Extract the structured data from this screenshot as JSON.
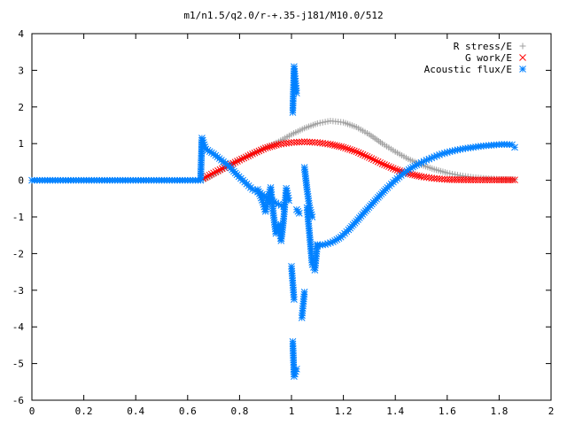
{
  "chart_data": {
    "type": "scatter",
    "title": "m1/n1.5/q2.0/r-+.35-j181/M10.0/512",
    "xlabel": "",
    "ylabel": "",
    "xlim": [
      0,
      2
    ],
    "ylim": [
      -6,
      4
    ],
    "xticks": [
      "0",
      "0.2",
      "0.4",
      "0.6",
      "0.8",
      "1",
      "1.2",
      "1.4",
      "1.6",
      "1.8",
      "2"
    ],
    "yticks": [
      "4",
      "3",
      "2",
      "1",
      "0",
      "-1",
      "-2",
      "-3",
      "-4",
      "-5",
      "-6"
    ],
    "grid": false,
    "legend_position": "top-right",
    "series": [
      {
        "name": "R stress/E",
        "marker": "plus",
        "color": "#a0a0a0",
        "points": [
          [
            0.66,
            0.0
          ],
          [
            0.7,
            0.15
          ],
          [
            0.75,
            0.35
          ],
          [
            0.8,
            0.55
          ],
          [
            0.85,
            0.72
          ],
          [
            0.9,
            0.88
          ],
          [
            0.95,
            1.05
          ],
          [
            1.0,
            1.25
          ],
          [
            1.05,
            1.42
          ],
          [
            1.1,
            1.55
          ],
          [
            1.15,
            1.62
          ],
          [
            1.2,
            1.58
          ],
          [
            1.25,
            1.45
          ],
          [
            1.3,
            1.25
          ],
          [
            1.35,
            1.0
          ],
          [
            1.4,
            0.78
          ],
          [
            1.45,
            0.58
          ],
          [
            1.5,
            0.42
          ],
          [
            1.55,
            0.3
          ],
          [
            1.6,
            0.2
          ],
          [
            1.65,
            0.13
          ],
          [
            1.7,
            0.08
          ],
          [
            1.75,
            0.05
          ],
          [
            1.8,
            0.03
          ],
          [
            1.86,
            0.02
          ]
        ]
      },
      {
        "name": "G work/E",
        "marker": "cross",
        "color": "#ff0000",
        "points": [
          [
            0.66,
            0.05
          ],
          [
            0.7,
            0.2
          ],
          [
            0.75,
            0.38
          ],
          [
            0.8,
            0.55
          ],
          [
            0.85,
            0.72
          ],
          [
            0.9,
            0.88
          ],
          [
            0.95,
            0.98
          ],
          [
            1.0,
            1.03
          ],
          [
            1.05,
            1.05
          ],
          [
            1.1,
            1.03
          ],
          [
            1.15,
            0.98
          ],
          [
            1.2,
            0.9
          ],
          [
            1.25,
            0.78
          ],
          [
            1.3,
            0.62
          ],
          [
            1.35,
            0.45
          ],
          [
            1.4,
            0.3
          ],
          [
            1.45,
            0.18
          ],
          [
            1.5,
            0.1
          ],
          [
            1.55,
            0.05
          ],
          [
            1.6,
            0.02
          ],
          [
            1.7,
            0.01
          ],
          [
            1.8,
            0.01
          ],
          [
            1.86,
            0.01
          ]
        ]
      },
      {
        "name": "Acoustic flux/E",
        "marker": "star",
        "color": "#0080ff",
        "points": [
          [
            0.0,
            0.0
          ],
          [
            0.05,
            0.0
          ],
          [
            0.1,
            0.0
          ],
          [
            0.15,
            0.0
          ],
          [
            0.2,
            0.0
          ],
          [
            0.25,
            0.0
          ],
          [
            0.3,
            0.0
          ],
          [
            0.35,
            0.0
          ],
          [
            0.4,
            0.0
          ],
          [
            0.45,
            0.0
          ],
          [
            0.5,
            0.0
          ],
          [
            0.55,
            0.0
          ],
          [
            0.6,
            0.0
          ],
          [
            0.65,
            0.0
          ],
          [
            0.655,
            1.15
          ],
          [
            0.67,
            0.85
          ],
          [
            0.7,
            0.72
          ],
          [
            0.73,
            0.55
          ],
          [
            0.76,
            0.38
          ],
          [
            0.79,
            0.15
          ],
          [
            0.82,
            -0.05
          ],
          [
            0.85,
            -0.25
          ],
          [
            0.88,
            -0.35
          ],
          [
            0.91,
            -0.5
          ],
          [
            0.94,
            -0.62
          ],
          [
            0.97,
            -0.72
          ],
          [
            0.87,
            -0.25
          ],
          [
            0.89,
            -0.6
          ],
          [
            0.9,
            -0.85
          ],
          [
            0.92,
            -0.2
          ],
          [
            0.93,
            -0.9
          ],
          [
            0.94,
            -1.45
          ],
          [
            0.95,
            -1.2
          ],
          [
            0.96,
            -1.65
          ],
          [
            0.97,
            -1.05
          ],
          [
            0.98,
            -0.22
          ],
          [
            0.99,
            -0.55
          ],
          [
            1.0,
            -2.35
          ],
          [
            1.01,
            -3.25
          ],
          [
            1.02,
            -0.8
          ],
          [
            1.03,
            -0.9
          ],
          [
            1.04,
            -3.75
          ],
          [
            1.05,
            -3.05
          ],
          [
            1.06,
            -0.75
          ],
          [
            1.07,
            -1.5
          ],
          [
            1.08,
            -2.3
          ],
          [
            1.09,
            -2.45
          ],
          [
            1.1,
            -1.75
          ],
          [
            1.005,
            1.85
          ],
          [
            1.01,
            3.1
          ],
          [
            1.02,
            2.38
          ],
          [
            1.05,
            0.35
          ],
          [
            1.06,
            -0.25
          ],
          [
            1.07,
            -0.75
          ],
          [
            1.08,
            -1.0
          ],
          [
            1.005,
            -4.4
          ],
          [
            1.01,
            -5.35
          ],
          [
            1.02,
            -5.15
          ],
          [
            1.1,
            -1.78
          ],
          [
            1.13,
            -1.75
          ],
          [
            1.16,
            -1.68
          ],
          [
            1.19,
            -1.55
          ],
          [
            1.22,
            -1.35
          ],
          [
            1.25,
            -1.12
          ],
          [
            1.28,
            -0.88
          ],
          [
            1.31,
            -0.65
          ],
          [
            1.34,
            -0.42
          ],
          [
            1.37,
            -0.2
          ],
          [
            1.4,
            0.0
          ],
          [
            1.43,
            0.18
          ],
          [
            1.46,
            0.33
          ],
          [
            1.49,
            0.45
          ],
          [
            1.52,
            0.55
          ],
          [
            1.55,
            0.64
          ],
          [
            1.58,
            0.72
          ],
          [
            1.61,
            0.78
          ],
          [
            1.64,
            0.83
          ],
          [
            1.67,
            0.87
          ],
          [
            1.7,
            0.9
          ],
          [
            1.73,
            0.93
          ],
          [
            1.76,
            0.95
          ],
          [
            1.79,
            0.97
          ],
          [
            1.82,
            0.98
          ],
          [
            1.85,
            0.97
          ],
          [
            1.86,
            0.9
          ]
        ]
      }
    ]
  }
}
